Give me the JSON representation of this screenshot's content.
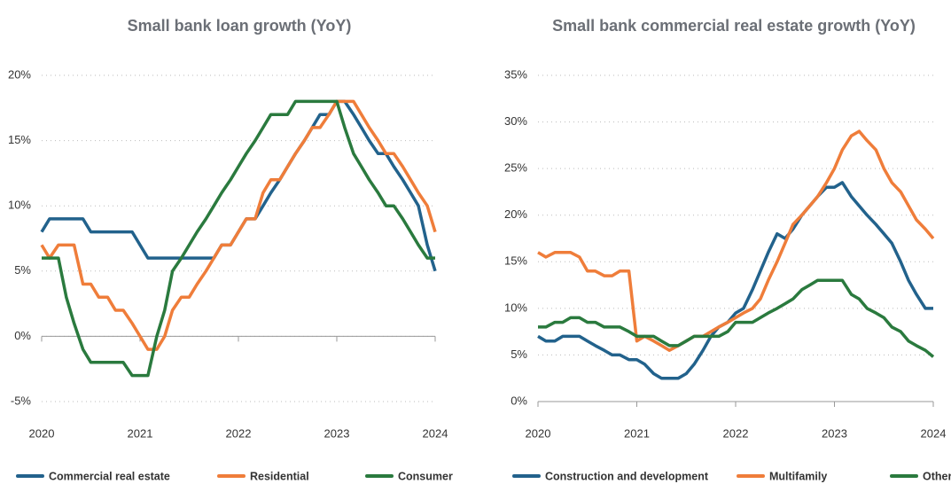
{
  "chart_data": [
    {
      "type": "line",
      "title": "Small bank loan growth (YoY)",
      "x": [
        2020,
        2020.08,
        2020.17,
        2020.25,
        2020.33,
        2020.42,
        2020.5,
        2020.58,
        2020.67,
        2020.75,
        2020.83,
        2020.92,
        2021,
        2021.08,
        2021.17,
        2021.25,
        2021.33,
        2021.42,
        2021.5,
        2021.58,
        2021.67,
        2021.75,
        2021.83,
        2021.92,
        2022,
        2022.08,
        2022.17,
        2022.25,
        2022.33,
        2022.42,
        2022.5,
        2022.58,
        2022.67,
        2022.75,
        2022.83,
        2022.92,
        2023,
        2023.08,
        2023.17,
        2023.25,
        2023.33,
        2023.42,
        2023.5,
        2023.58,
        2023.67,
        2023.75,
        2023.83,
        2023.92,
        2024
      ],
      "xlim": [
        2020,
        2024
      ],
      "xticks": [
        2020,
        2021,
        2022,
        2023,
        2024
      ],
      "ylim": [
        -5,
        20
      ],
      "yticks": [
        {
          "value": -5,
          "label": "-5%"
        },
        {
          "value": 0,
          "label": "0%"
        },
        {
          "value": 5,
          "label": "5%"
        },
        {
          "value": 10,
          "label": "10%"
        },
        {
          "value": 15,
          "label": "15%"
        },
        {
          "value": 20,
          "label": "20%"
        }
      ],
      "grid": true,
      "series": [
        {
          "name": "Commercial real estate",
          "color": "#22628c",
          "values": [
            8,
            9,
            9,
            9,
            9,
            9,
            8,
            8,
            8,
            8,
            8,
            8,
            7,
            6,
            6,
            6,
            6,
            6,
            6,
            6,
            6,
            6,
            7,
            7,
            8,
            9,
            9,
            10,
            11,
            12,
            13,
            14,
            15,
            16,
            17,
            17,
            18,
            18,
            17,
            16,
            15,
            14,
            14,
            13,
            12,
            11,
            10,
            7,
            5
          ]
        },
        {
          "name": "Residential",
          "color": "#ef7d3a",
          "values": [
            7,
            6,
            7,
            7,
            7,
            4,
            4,
            3,
            3,
            2,
            2,
            1,
            0,
            -1,
            -1,
            0,
            2,
            3,
            3,
            4,
            5,
            6,
            7,
            7,
            8,
            9,
            9,
            11,
            12,
            12,
            13,
            14,
            15,
            16,
            16,
            17,
            18,
            18,
            18,
            17,
            16,
            15,
            14,
            14,
            13,
            12,
            11,
            10,
            8
          ]
        },
        {
          "name": "Consumer",
          "color": "#2a7a3e",
          "values": [
            6,
            6,
            6,
            3,
            1,
            -1,
            -2,
            -2,
            -2,
            -2,
            -2,
            -3,
            -3,
            -3,
            0,
            2,
            5,
            6,
            7,
            8,
            9,
            10,
            11,
            12,
            13,
            14,
            15,
            16,
            17,
            17,
            17,
            18,
            18,
            18,
            18,
            18,
            18,
            16,
            14,
            13,
            12,
            11,
            10,
            10,
            9,
            8,
            7,
            6,
            6
          ]
        }
      ]
    },
    {
      "type": "line",
      "title": "Small bank commercial real estate growth (YoY)",
      "x": [
        2020,
        2020.08,
        2020.17,
        2020.25,
        2020.33,
        2020.42,
        2020.5,
        2020.58,
        2020.67,
        2020.75,
        2020.83,
        2020.92,
        2021,
        2021.08,
        2021.17,
        2021.25,
        2021.33,
        2021.42,
        2021.5,
        2021.58,
        2021.67,
        2021.75,
        2021.83,
        2021.92,
        2022,
        2022.08,
        2022.17,
        2022.25,
        2022.33,
        2022.42,
        2022.5,
        2022.58,
        2022.67,
        2022.75,
        2022.83,
        2022.92,
        2023,
        2023.08,
        2023.17,
        2023.25,
        2023.33,
        2023.42,
        2023.5,
        2023.58,
        2023.67,
        2023.75,
        2023.83,
        2023.92,
        2024
      ],
      "xlim": [
        2020,
        2024
      ],
      "xticks": [
        2020,
        2021,
        2022,
        2023,
        2024
      ],
      "ylim": [
        0,
        35
      ],
      "yticks": [
        {
          "value": 0,
          "label": "0%"
        },
        {
          "value": 5,
          "label": "5%"
        },
        {
          "value": 10,
          "label": "10%"
        },
        {
          "value": 15,
          "label": "15%"
        },
        {
          "value": 20,
          "label": "20%"
        },
        {
          "value": 25,
          "label": "25%"
        },
        {
          "value": 30,
          "label": "30%"
        },
        {
          "value": 35,
          "label": "35%"
        }
      ],
      "grid": true,
      "series": [
        {
          "name": "Construction and development",
          "color": "#22628c",
          "values": [
            7,
            6.5,
            6.5,
            7,
            7,
            7,
            6.5,
            6,
            5.5,
            5,
            5,
            4.5,
            4.5,
            4,
            3,
            2.5,
            2.5,
            2.5,
            3,
            4,
            5.5,
            7,
            8,
            8.5,
            9.5,
            10,
            12,
            14,
            16,
            18,
            17.5,
            18.5,
            20,
            21,
            22,
            23,
            23,
            23.5,
            22,
            21,
            20,
            19,
            18,
            17,
            15,
            13,
            11.5,
            10,
            10
          ]
        },
        {
          "name": "Multifamily",
          "color": "#ef7d3a",
          "values": [
            16,
            15.5,
            16,
            16,
            16,
            15.5,
            14,
            14,
            13.5,
            13.5,
            14,
            14,
            6.5,
            7,
            6.5,
            6,
            5.5,
            6,
            6.5,
            7,
            7,
            7.5,
            8,
            8.5,
            9,
            9.5,
            10,
            11,
            13,
            15,
            17,
            19,
            20,
            21,
            22,
            23.5,
            25,
            27,
            28.5,
            29,
            28,
            27,
            25,
            23.5,
            22.5,
            21,
            19.5,
            18.5,
            17.5
          ]
        },
        {
          "name": "Other CRE",
          "color": "#2a7a3e",
          "values": [
            8,
            8,
            8.5,
            8.5,
            9,
            9,
            8.5,
            8.5,
            8,
            8,
            8,
            7.5,
            7,
            7,
            7,
            6.5,
            6,
            6,
            6.5,
            7,
            7,
            7,
            7,
            7.5,
            8.5,
            8.5,
            8.5,
            9,
            9.5,
            10,
            10.5,
            11,
            12,
            12.5,
            13,
            13,
            13,
            13,
            11.5,
            11,
            10,
            9.5,
            9,
            8,
            7.5,
            6.5,
            6,
            5.5,
            4.8
          ]
        }
      ]
    }
  ]
}
